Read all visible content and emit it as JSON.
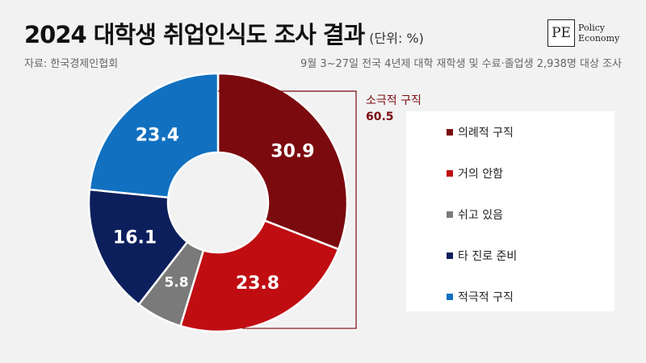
{
  "header": {
    "title": "2024 대학생 취업인식도 조사 결과",
    "unit": "(단위: %)",
    "source": "자료: 한국경제인협회",
    "note": "9월 3~27일 전국 4년제 대학 재학생 및 수료·졸업생 2,938명 대상 조사"
  },
  "logo": {
    "mark": "PE",
    "line1": "Policy",
    "line2": "Economy"
  },
  "chart_data": {
    "type": "pie",
    "donut": true,
    "title": "2024 대학생 취업인식도 조사 결과",
    "unit": "(단위: %)",
    "categories": [
      "의례적 구직",
      "거의 안함",
      "쉬고 있음",
      "타 진로 준비",
      "적극적 구직"
    ],
    "values": [
      30.9,
      23.8,
      5.8,
      16.1,
      23.4
    ],
    "colors": [
      "#7b0a0e",
      "#c00d12",
      "#7a7a7a",
      "#0c1f5c",
      "#1170c0"
    ],
    "annotation": {
      "label": "소극적 구직",
      "value": "60.5",
      "color": "#7b0a0e"
    },
    "legend_position": "right"
  }
}
